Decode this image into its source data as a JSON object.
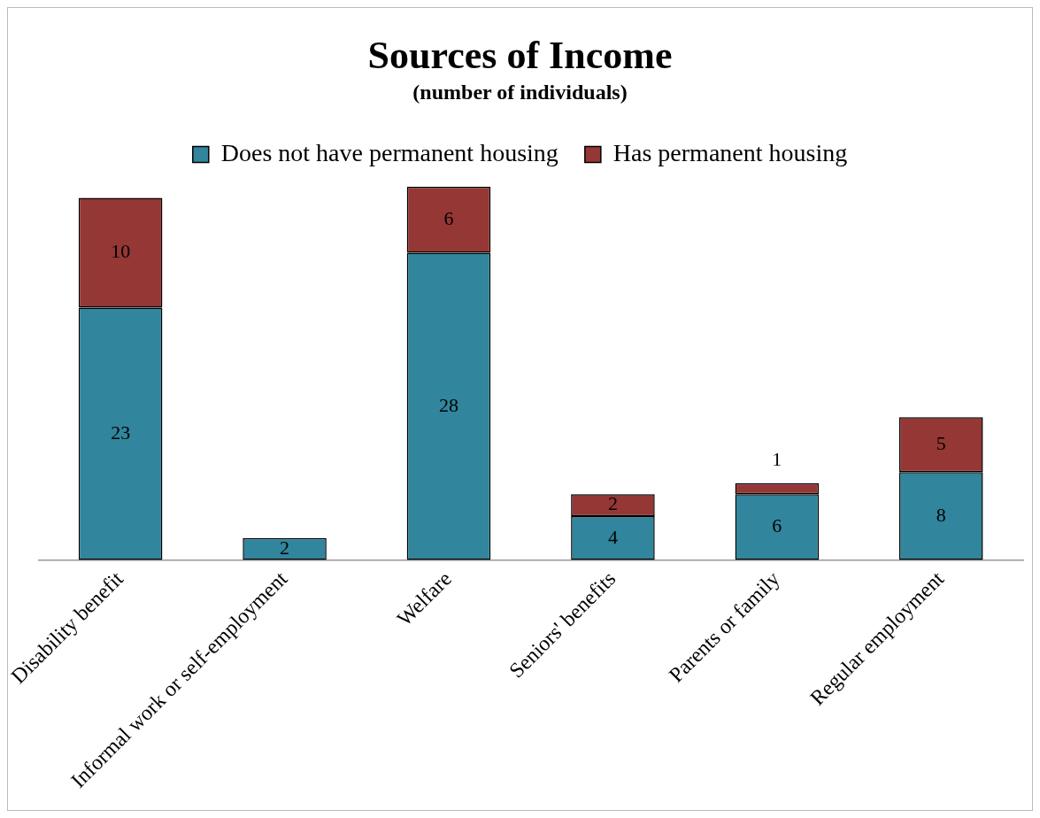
{
  "chart_data": {
    "type": "bar",
    "title": "Sources of Income",
    "subtitle": "(number of individuals)",
    "categories": [
      "Disability benefit",
      "Informal work or self-employment",
      "Welfare",
      "Seniors' benefits",
      "Parents or family",
      "Regular employment"
    ],
    "series": [
      {
        "name": "Does not have permanent housing",
        "color": "#31859c",
        "values": [
          23,
          2,
          28,
          4,
          6,
          8
        ]
      },
      {
        "name": "Has permanent housing",
        "color": "#953735",
        "values": [
          10,
          null,
          6,
          2,
          1,
          5
        ]
      }
    ],
    "stacked": true,
    "data_labels": true,
    "legend": "top",
    "grid": false
  }
}
